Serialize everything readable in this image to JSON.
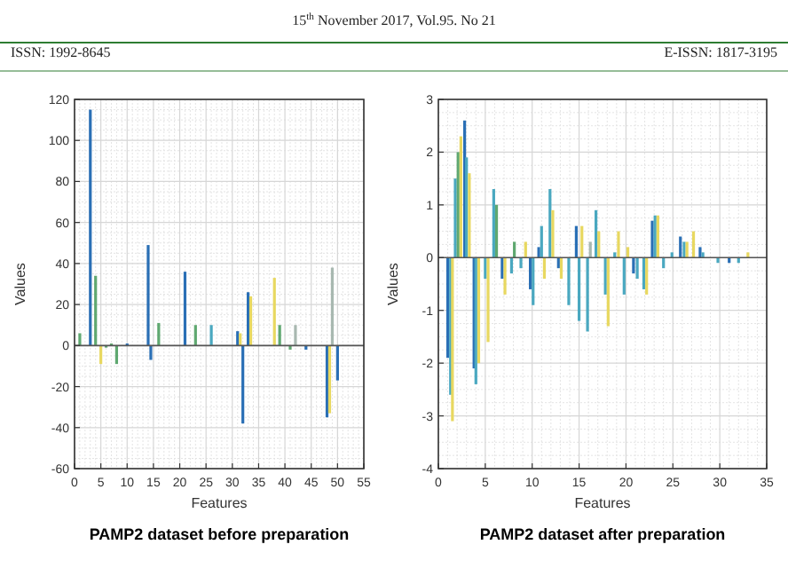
{
  "chart_data": [
    {
      "type": "bar",
      "title": "PAMP2 dataset before preparation",
      "xlabel": "Features",
      "ylabel": "Values",
      "annotations": [
        "15$^{th}$ November 2017, Vol.95. No 21",
        "ISSN: 1992-8645",
        "E-ISSN: 1817-3195"
      ],
      "x": [
        1,
        3,
        4,
        5,
        6,
        7,
        8,
        10,
        14,
        14.5,
        16,
        21,
        23,
        26,
        31,
        31.5,
        32,
        33,
        33.5,
        38,
        39,
        41,
        42,
        44,
        48,
        48.5,
        49,
        50
      ],
      "values": [
        6,
        115,
        34,
        -9,
        -1,
        1,
        -9,
        1,
        49,
        -7,
        11,
        36,
        10,
        10,
        7,
        6,
        -38,
        26,
        24,
        33,
        10,
        -2,
        10,
        -2,
        -35,
        -33,
        38,
        -17
      ],
      "colors": [
        "#5fa870",
        "#2a6fb5",
        "#5fa870",
        "#e8d860",
        "#5fa870",
        "#5fa870",
        "#5fa870",
        "#2a6fb5",
        "#2a6fb5",
        "#2a6fb5",
        "#5fa870",
        "#2a6fb5",
        "#5fa870",
        "#4aa8c0",
        "#2a6fb5",
        "#e8d860",
        "#2a6fb5",
        "#2a6fb5",
        "#e8d860",
        "#e8d860",
        "#5fa870",
        "#5fa870",
        "#a8b8b0",
        "#2a6fb5",
        "#2a6fb5",
        "#e8d860",
        "#a8b8b0",
        "#2a6fb5"
      ],
      "xlim": [
        0,
        55
      ],
      "xticks": [
        0,
        5,
        10,
        15,
        20,
        25,
        30,
        35,
        40,
        45,
        50,
        55
      ],
      "ylim": [
        -60,
        120
      ],
      "yticks": [
        -60,
        -40,
        -20,
        0,
        20,
        40,
        60,
        80,
        100,
        120
      ],
      "grid": true
    },
    {
      "type": "bar",
      "title": "PAMP2 dataset after preparation",
      "xlabel": "Features",
      "ylabel": "Values",
      "x": [
        1.0,
        1.3,
        1.5,
        1.8,
        2.1,
        2.4,
        2.8,
        3.0,
        3.3,
        3.8,
        4.0,
        4.3,
        5.0,
        5.3,
        5.9,
        6.2,
        6.8,
        7.1,
        7.8,
        8.1,
        8.8,
        9.3,
        9.8,
        10.1,
        10.7,
        11.0,
        11.3,
        11.9,
        12.2,
        12.8,
        13.1,
        13.9,
        14.7,
        15.0,
        15.3,
        15.9,
        16.2,
        16.8,
        17.1,
        17.8,
        18.1,
        18.8,
        19.2,
        19.8,
        20.2,
        20.8,
        21.2,
        21.9,
        22.2,
        22.8,
        23.1,
        23.4,
        24.0,
        24.9,
        25.8,
        26.2,
        26.5,
        27.2,
        27.9,
        28.2,
        29.8,
        31,
        32,
        33
      ],
      "values": [
        -1.9,
        -2.6,
        -3.1,
        1.5,
        2.0,
        2.3,
        2.6,
        1.9,
        1.6,
        -2.1,
        -2.4,
        -2.0,
        -0.4,
        -1.6,
        1.3,
        1.0,
        -0.4,
        -0.7,
        -0.3,
        0.3,
        -0.2,
        0.3,
        -0.6,
        -0.9,
        0.2,
        0.6,
        -0.4,
        1.3,
        0.9,
        -0.2,
        -0.4,
        -0.9,
        0.6,
        -1.2,
        0.6,
        -1.4,
        0.3,
        0.9,
        0.5,
        -0.7,
        -1.3,
        0.1,
        0.5,
        -0.7,
        0.2,
        -0.3,
        -0.4,
        -0.6,
        -0.7,
        0.7,
        0.8,
        0.8,
        -0.2,
        0.1,
        0.4,
        0.3,
        0.3,
        0.5,
        0.2,
        0.1,
        -0.1,
        -0.1,
        -0.1,
        0.1
      ],
      "colors": [
        "#2a6fb5",
        "#4aa8c0",
        "#e8d860",
        "#4aa8c0",
        "#5fa870",
        "#e8d860",
        "#2a6fb5",
        "#4aa8c0",
        "#e8d860",
        "#2a6fb5",
        "#4aa8c0",
        "#e8d860",
        "#4aa8c0",
        "#e8d860",
        "#4aa8c0",
        "#5fa870",
        "#2a6fb5",
        "#e8d860",
        "#4aa8c0",
        "#5fa870",
        "#4aa8c0",
        "#e8d860",
        "#2a6fb5",
        "#4aa8c0",
        "#2a6fb5",
        "#4aa8c0",
        "#e8d860",
        "#4aa8c0",
        "#e8d860",
        "#2a6fb5",
        "#e8d860",
        "#4aa8c0",
        "#2a6fb5",
        "#4aa8c0",
        "#e8d860",
        "#4aa8c0",
        "#a8b8b0",
        "#4aa8c0",
        "#e8d860",
        "#4aa8c0",
        "#e8d860",
        "#4aa8c0",
        "#e8d860",
        "#4aa8c0",
        "#e8d860",
        "#2a6fb5",
        "#4aa8c0",
        "#4aa8c0",
        "#e8d860",
        "#2a6fb5",
        "#4aa8c0",
        "#e8d860",
        "#4aa8c0",
        "#4aa8c0",
        "#2a6fb5",
        "#4aa8c0",
        "#e8d860",
        "#e8d860",
        "#2a6fb5",
        "#4aa8c0",
        "#4aa8c0",
        "#2a6fb5",
        "#4aa8c0",
        "#e8d860"
      ],
      "xlim": [
        0,
        35
      ],
      "xticks": [
        0,
        5,
        10,
        15,
        20,
        25,
        30,
        35
      ],
      "ylim": [
        -4,
        3
      ],
      "yticks": [
        -4,
        -3,
        -2,
        -1,
        0,
        1,
        2,
        3
      ],
      "grid": true
    }
  ]
}
